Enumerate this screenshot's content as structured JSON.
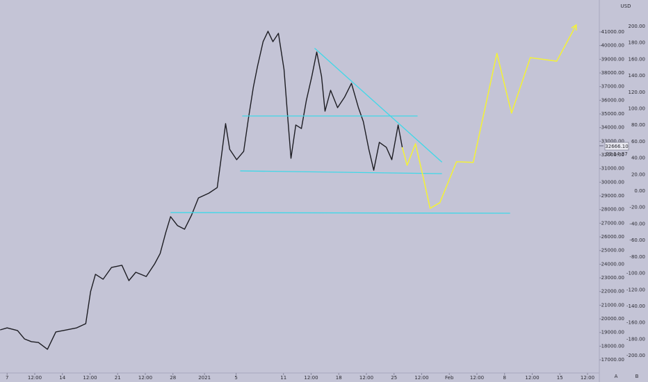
{
  "chart_data": {
    "type": "line",
    "currency": "USD",
    "last_price": {
      "value": 32666.1,
      "label": "32666.10"
    },
    "countdown": "03:14:37",
    "axis_buttons": [
      "A",
      "B"
    ],
    "xlim": [
      -0.9,
      75
    ],
    "ylim": [
      16038,
      43339
    ],
    "y2lim": [
      -221,
      232
    ],
    "xticks": [
      {
        "value": 0,
        "label": "7"
      },
      {
        "value": 3.5,
        "label": "12:00"
      },
      {
        "value": 7,
        "label": "14"
      },
      {
        "value": 10.5,
        "label": "12:00"
      },
      {
        "value": 14,
        "label": "21"
      },
      {
        "value": 17.5,
        "label": "12:00"
      },
      {
        "value": 21,
        "label": "28"
      },
      {
        "value": 25,
        "label": "2021"
      },
      {
        "value": 29,
        "label": "5"
      },
      {
        "value": 35,
        "label": "11"
      },
      {
        "value": 38.5,
        "label": "12:00"
      },
      {
        "value": 42,
        "label": "18"
      },
      {
        "value": 45.5,
        "label": "12:00"
      },
      {
        "value": 49,
        "label": "25"
      },
      {
        "value": 52.5,
        "label": "12:00"
      },
      {
        "value": 56,
        "label": "Feb"
      },
      {
        "value": 59.5,
        "label": "12:00"
      },
      {
        "value": 63,
        "label": "8"
      },
      {
        "value": 66.5,
        "label": "12:00"
      },
      {
        "value": 70,
        "label": "15"
      },
      {
        "value": 73.5,
        "label": "12:00"
      }
    ],
    "yticks": [
      {
        "value": 17000,
        "label": "17000.00"
      },
      {
        "value": 18000,
        "label": "18000.00"
      },
      {
        "value": 19000,
        "label": "19000.00"
      },
      {
        "value": 20000,
        "label": "20000.00"
      },
      {
        "value": 21000,
        "label": "21000.00"
      },
      {
        "value": 22000,
        "label": "22000.00"
      },
      {
        "value": 23000,
        "label": "23000.00"
      },
      {
        "value": 24000,
        "label": "24000.00"
      },
      {
        "value": 25000,
        "label": "25000.00"
      },
      {
        "value": 26000,
        "label": "26000.00"
      },
      {
        "value": 27000,
        "label": "27000.00"
      },
      {
        "value": 28000,
        "label": "28000.00"
      },
      {
        "value": 29000,
        "label": "29000.00"
      },
      {
        "value": 30000,
        "label": "30000.00"
      },
      {
        "value": 31000,
        "label": "31000.00"
      },
      {
        "value": 32000,
        "label": "32000.00"
      },
      {
        "value": 33000,
        "label": "33000.00"
      },
      {
        "value": 34000,
        "label": "34000.00"
      },
      {
        "value": 35000,
        "label": "35000.00"
      },
      {
        "value": 36000,
        "label": "36000.00"
      },
      {
        "value": 37000,
        "label": "37000.00"
      },
      {
        "value": 38000,
        "label": "38000.00"
      },
      {
        "value": 39000,
        "label": "39000.00"
      },
      {
        "value": 40000,
        "label": "40000.00"
      },
      {
        "value": 41000,
        "label": "41000.00"
      }
    ],
    "y2ticks": [
      {
        "value": -200,
        "label": "-200.00"
      },
      {
        "value": -180,
        "label": "-180.00"
      },
      {
        "value": -160,
        "label": "-160.00"
      },
      {
        "value": -140,
        "label": "-140.00"
      },
      {
        "value": -120,
        "label": "-120.00"
      },
      {
        "value": -100,
        "label": "-100.00"
      },
      {
        "value": -80,
        "label": "-80.00"
      },
      {
        "value": -60,
        "label": "-60.00"
      },
      {
        "value": -40,
        "label": "-40.00"
      },
      {
        "value": -20,
        "label": "-20.00"
      },
      {
        "value": 0,
        "label": "0.00"
      },
      {
        "value": 20,
        "label": "20.00"
      },
      {
        "value": 40,
        "label": "40.00"
      },
      {
        "value": 60,
        "label": "60.00"
      },
      {
        "value": 80,
        "label": "80.00"
      },
      {
        "value": 100,
        "label": "100.00"
      },
      {
        "value": 120,
        "label": "120.00"
      },
      {
        "value": 140,
        "label": "140.00"
      },
      {
        "value": 160,
        "label": "160.00"
      },
      {
        "value": 180,
        "label": "180.00"
      },
      {
        "value": 200,
        "label": "200.00"
      }
    ],
    "series": [
      {
        "color": "#1c1c22",
        "width": 1.4,
        "x": [
          -0.88,
          0,
          1.32,
          2.2,
          3.08,
          3.96,
          5.11,
          6.17,
          7.49,
          8.81,
          9.96,
          10.57,
          11.19,
          12.16,
          13.22,
          14.54,
          15.42,
          16.3,
          17.62,
          18.68,
          19.38,
          20.09,
          20.7,
          21.59,
          22.47,
          23.35,
          24.23,
          25.55,
          26.61,
          27.14,
          27.67,
          28.19,
          29.07,
          29.96,
          30.57,
          31.19,
          31.72,
          32.42,
          33.04,
          33.66,
          34.36,
          35.07,
          35.51,
          35.95,
          36.56,
          37.27,
          37.89,
          38.59,
          39.21,
          39.82,
          40.26,
          40.97,
          41.85,
          42.73,
          43.61,
          44.49,
          45.11,
          45.81,
          46.43,
          47.14,
          48.02,
          48.72,
          49.52,
          50.04
        ],
        "values": [
          19190,
          19340,
          19140,
          18530,
          18330,
          18270,
          17770,
          19040,
          19190,
          19340,
          19650,
          21990,
          23260,
          22900,
          23760,
          23920,
          22800,
          23410,
          23100,
          24020,
          24780,
          26310,
          27480,
          26820,
          26560,
          27580,
          28850,
          29200,
          29610,
          31900,
          34290,
          32410,
          31650,
          32260,
          34700,
          36980,
          38510,
          40290,
          41050,
          40290,
          40900,
          38250,
          34950,
          31750,
          34190,
          33930,
          35970,
          37750,
          39530,
          37750,
          35200,
          36730,
          35460,
          36220,
          37240,
          35460,
          34440,
          32410,
          30880,
          32920,
          32560,
          31650,
          34190,
          32560
        ]
      },
      {
        "color": "#3fd8e8",
        "width": 1.3,
        "x": [
          38.94,
          55.07
        ],
        "values": [
          39810,
          31470
        ]
      },
      {
        "color": "#3fd8e8",
        "width": 1.3,
        "x": [
          29.78,
          51.98
        ],
        "values": [
          34850,
          34850
        ]
      },
      {
        "color": "#3fd8e8",
        "width": 1.3,
        "x": [
          29.52,
          55.07
        ],
        "values": [
          30830,
          30630
        ]
      },
      {
        "color": "#3fd8e8",
        "width": 1.3,
        "x": [
          20.7,
          63.7
        ],
        "values": [
          27780,
          27730
        ]
      },
      {
        "color": "#f2f03c",
        "width": 1.6,
        "arrow": true,
        "x": [
          50.04,
          50.66,
          51.72,
          52.69,
          53.57,
          54.8,
          56.92,
          59.03,
          62.03,
          63.88,
          66.26,
          69.6,
          72.07
        ],
        "values": [
          32560,
          31240,
          32820,
          30380,
          28090,
          28500,
          31500,
          31450,
          39430,
          35060,
          39120,
          38860,
          41510
        ]
      }
    ]
  }
}
